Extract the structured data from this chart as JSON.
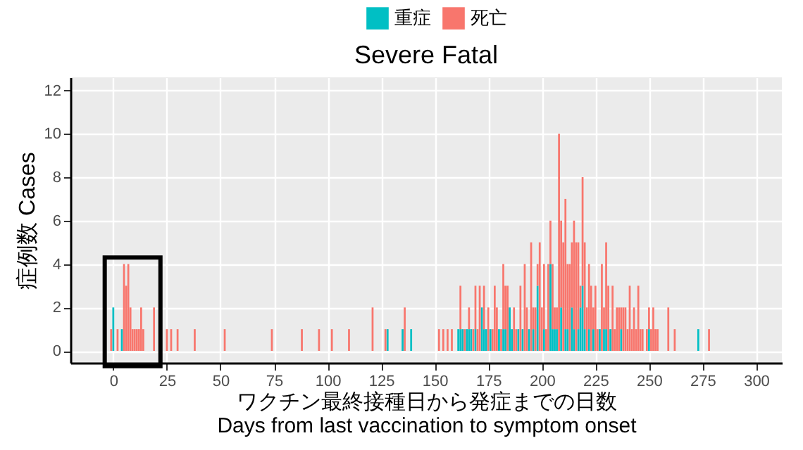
{
  "chart_data": {
    "type": "bar",
    "stacked": true,
    "title": "Severe   Fatal",
    "xlabel": "ワクチン最終接種日から発症までの日数\nDays from last vaccination to symptom onset",
    "ylabel": "症例数 Cases",
    "x": [
      -1,
      0,
      2,
      4,
      5,
      6,
      7,
      8,
      9,
      10,
      11,
      12,
      13,
      14,
      19,
      25,
      27,
      30,
      38,
      52,
      74,
      88,
      96,
      102,
      110,
      121,
      127,
      128,
      135,
      136,
      139,
      152,
      154,
      156,
      158,
      161,
      162,
      163,
      164,
      165,
      166,
      167,
      168,
      169,
      170,
      171,
      172,
      173,
      174,
      175,
      176,
      177,
      178,
      179,
      180,
      181,
      182,
      183,
      184,
      185,
      186,
      187,
      188,
      189,
      190,
      191,
      192,
      193,
      194,
      195,
      196,
      197,
      198,
      199,
      200,
      201,
      202,
      203,
      204,
      205,
      206,
      207,
      208,
      209,
      210,
      211,
      212,
      213,
      214,
      215,
      216,
      217,
      218,
      219,
      220,
      221,
      222,
      223,
      224,
      225,
      226,
      227,
      228,
      229,
      230,
      231,
      232,
      233,
      234,
      235,
      236,
      237,
      238,
      239,
      240,
      241,
      242,
      243,
      244,
      245,
      246,
      247,
      249,
      250,
      251,
      252,
      253,
      254,
      259,
      262,
      273,
      278
    ],
    "series": [
      {
        "name": "重症",
        "color": "#00bfc4",
        "values": [
          0,
          2,
          0,
          1,
          0,
          0,
          0,
          0,
          0,
          0,
          0,
          0,
          0,
          0,
          0,
          0,
          0,
          0,
          0,
          0,
          0,
          0,
          0,
          0,
          0,
          0,
          0,
          1,
          1,
          0,
          1,
          0,
          0,
          0,
          0,
          1,
          1,
          1,
          0,
          1,
          1,
          1,
          0,
          1,
          0,
          0,
          2,
          1,
          1,
          0,
          1,
          0,
          0,
          0,
          1,
          0,
          1,
          1,
          0,
          2,
          1,
          0,
          0,
          1,
          0,
          1,
          0,
          0,
          1,
          0,
          1,
          0,
          3,
          0,
          0,
          1,
          0,
          0,
          4,
          1,
          1,
          1,
          0,
          2,
          0,
          1,
          1,
          0,
          2,
          1,
          0,
          1,
          2,
          3,
          1,
          0,
          1,
          0,
          1,
          0,
          0,
          1,
          0,
          1,
          1,
          0,
          1,
          0,
          0,
          0,
          0,
          1,
          0,
          0,
          0,
          0,
          0,
          0,
          0,
          0,
          0,
          0,
          0,
          1,
          0,
          0,
          0,
          0,
          0,
          0,
          1,
          0
        ]
      },
      {
        "name": "死亡",
        "color": "#f8766d",
        "values": [
          1,
          0,
          1,
          0,
          4,
          3,
          4,
          2,
          1,
          1,
          1,
          1,
          2,
          1,
          2,
          1,
          1,
          1,
          1,
          1,
          1,
          1,
          1,
          1,
          1,
          2,
          1,
          0,
          0,
          2,
          0,
          1,
          1,
          1,
          1,
          0,
          2,
          0,
          1,
          0,
          1,
          0,
          1,
          2,
          1,
          3,
          0,
          2,
          0,
          2,
          0,
          1,
          3,
          2,
          0,
          1,
          3,
          2,
          3,
          0,
          0,
          2,
          1,
          0,
          3,
          0,
          4,
          2,
          0,
          5,
          1,
          2,
          1,
          5,
          2,
          3,
          1,
          4,
          2,
          3,
          1,
          1,
          10,
          4,
          5,
          6,
          3,
          4,
          3,
          5,
          5,
          4,
          1,
          5,
          4,
          2,
          3,
          3,
          1,
          3,
          1,
          0,
          4,
          1,
          4,
          3,
          0,
          3,
          1,
          2,
          2,
          1,
          2,
          2,
          1,
          3,
          1,
          2,
          1,
          3,
          1,
          1,
          1,
          1,
          1,
          2,
          1,
          1,
          2,
          1,
          0,
          1
        ]
      }
    ],
    "xlim": [
      -20,
      312
    ],
    "xticks": [
      0,
      25,
      50,
      75,
      100,
      125,
      150,
      175,
      200,
      225,
      250,
      275,
      300
    ],
    "ylim": [
      -0.55,
      12.6
    ],
    "yticks": [
      0,
      2,
      4,
      6,
      8,
      10,
      12
    ],
    "grid": true,
    "legend": "top"
  }
}
